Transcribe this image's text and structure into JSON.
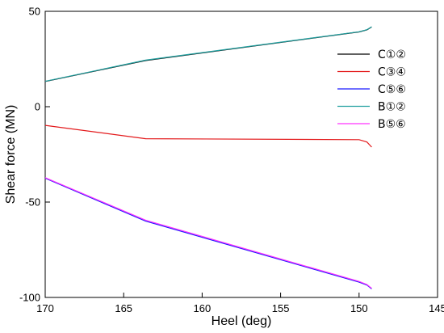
{
  "chart_data": {
    "type": "line",
    "title": "",
    "xlabel": "Heel (deg)",
    "ylabel": "Shear force (MN)",
    "xlim": [
      170,
      145
    ],
    "ylim": [
      -100,
      50
    ],
    "x_reversed": true,
    "x_ticks": [
      170,
      165,
      160,
      155,
      150,
      145
    ],
    "y_ticks": [
      50,
      0,
      -50,
      -100
    ],
    "grid": false,
    "legend": "top-right",
    "series": [
      {
        "name": "C①②",
        "color": "#000000",
        "x": [
          170,
          163.6,
          150,
          149.5,
          149.2
        ],
        "y": [
          13.2,
          24.2,
          39.2,
          40.3,
          41.8
        ]
      },
      {
        "name": "C③④",
        "color": "#e31a1c",
        "x": [
          170,
          163.6,
          150,
          149.5,
          149.2
        ],
        "y": [
          -9.8,
          -16.8,
          -17.3,
          -18.5,
          -21.2
        ]
      },
      {
        "name": "C⑤⑥",
        "color": "#1a1aff",
        "x": [
          170,
          163.6,
          150,
          149.5,
          149.2
        ],
        "y": [
          -37.5,
          -60.0,
          -92.0,
          -93.5,
          -95.5
        ]
      },
      {
        "name": "B①②",
        "color": "#1f9e9e",
        "x": [
          170,
          163.6,
          150,
          149.5,
          149.2
        ],
        "y": [
          13.3,
          24.4,
          39.3,
          40.4,
          41.9
        ]
      },
      {
        "name": "B⑤⑥",
        "color": "#ff33ff",
        "x": [
          170,
          163.6,
          150,
          149.5,
          149.2
        ],
        "y": [
          -37.2,
          -59.5,
          -91.6,
          -93.2,
          -95.2
        ]
      }
    ]
  }
}
